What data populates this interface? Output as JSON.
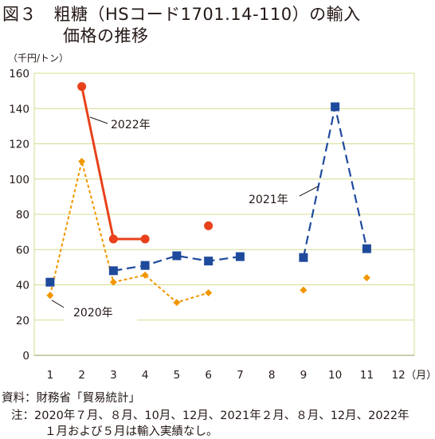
{
  "figure": {
    "title_line1": "図３　粗糖（HSコード1701.14-110）の輸入",
    "title_line2": "価格の推移",
    "unit": "（千円/トン）",
    "source_note": "資料：財務省「貿易統計」",
    "note_line1": "注：2020年７月、８月、10月、12月、2021年２月、８月、12月、2022年",
    "note_line2": "１月および５月は輸入実績なし。"
  },
  "chart_data": {
    "type": "line",
    "x_tick_labels": [
      "1",
      "2",
      "3",
      "4",
      "5",
      "6",
      "7",
      "8",
      "9",
      "10",
      "11",
      "12"
    ],
    "x_axis_suffix": "（月）",
    "y_tick_labels": [
      "0",
      "20",
      "40",
      "60",
      "80",
      "100",
      "120",
      "140",
      "160"
    ],
    "ylim": [
      0,
      160
    ],
    "xlim": [
      0.5,
      12.5
    ],
    "grid": "horizontal",
    "series": [
      {
        "name": "2020年",
        "color": "#F29600",
        "line_style": "dotted",
        "marker": "diamond",
        "points": [
          [
            1,
            34
          ],
          [
            2,
            110
          ],
          [
            3,
            41.5
          ],
          [
            4,
            45.5
          ],
          [
            5,
            30
          ],
          [
            6,
            35.5
          ],
          [
            9,
            37
          ],
          [
            11,
            44
          ]
        ],
        "segments": [
          [
            1,
            2,
            3,
            4,
            5,
            6
          ]
        ]
      },
      {
        "name": "2021年",
        "color": "#1E4A9C",
        "line_style": "dashed",
        "marker": "square",
        "points": [
          [
            1,
            41.5
          ],
          [
            3,
            48
          ],
          [
            4,
            51
          ],
          [
            5,
            56.5
          ],
          [
            6,
            53.5
          ],
          [
            7,
            56
          ],
          [
            9,
            55.5
          ],
          [
            10,
            141
          ],
          [
            11,
            60.5
          ]
        ],
        "segments": [
          [
            3,
            4,
            5,
            6,
            7
          ],
          [
            9,
            10,
            11
          ]
        ]
      },
      {
        "name": "2022年",
        "color": "#E8411B",
        "line_style": "solid",
        "marker": "circle",
        "points": [
          [
            2,
            152.5
          ],
          [
            3,
            66
          ],
          [
            4,
            66
          ],
          [
            6,
            73.5
          ]
        ],
        "segments": [
          [
            2,
            3,
            4
          ]
        ]
      }
    ]
  }
}
